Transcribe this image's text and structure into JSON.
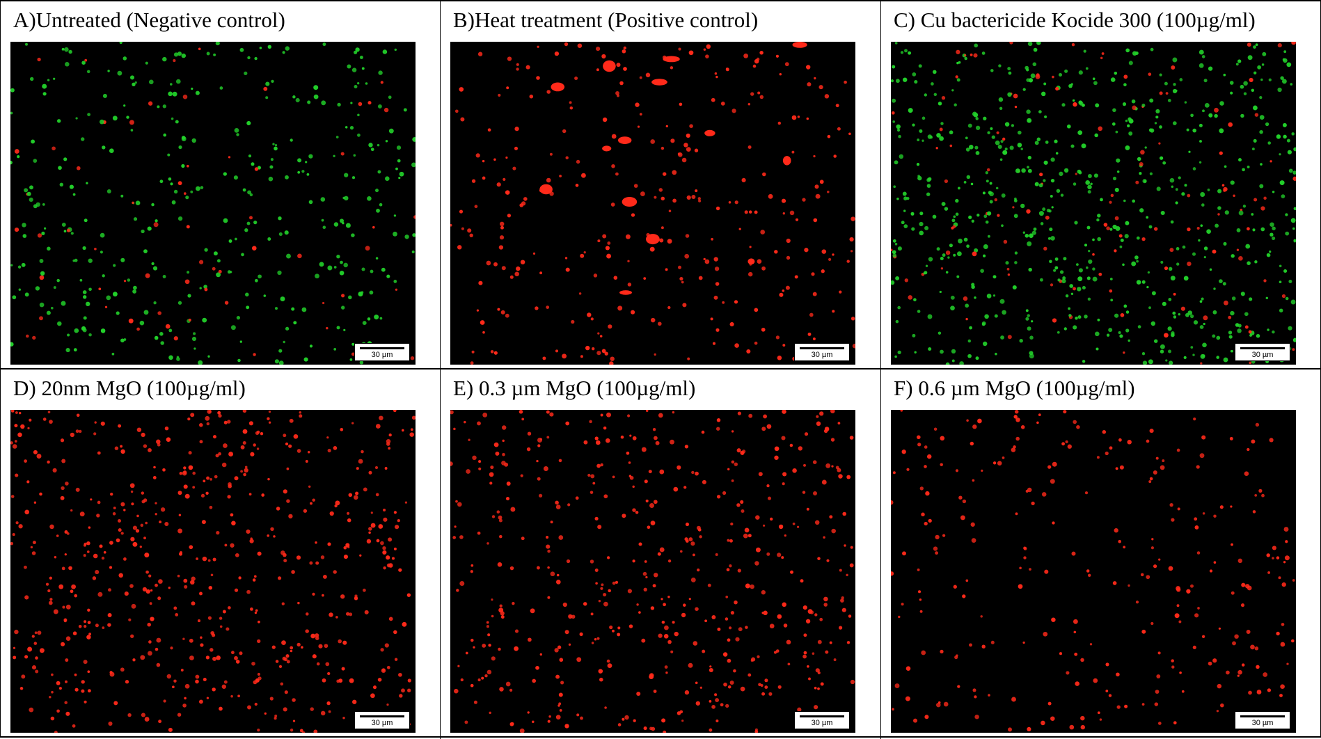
{
  "panels": [
    {
      "caption": "A)Untreated (Negative control)",
      "scale_label": "30 µm",
      "stain": {
        "live_fraction": 0.85,
        "cell_count": 420,
        "clumps": 0
      }
    },
    {
      "caption": "B)Heat treatment (Positive control)",
      "scale_label": "30 µm",
      "stain": {
        "live_fraction": 0.0,
        "cell_count": 300,
        "clumps": 14
      }
    },
    {
      "caption": "C) Cu bactericide Kocide 300 (100µg/ml)",
      "scale_label": "30 µm",
      "stain": {
        "live_fraction": 0.82,
        "cell_count": 760,
        "clumps": 0
      }
    },
    {
      "caption": "D) 20nm MgO (100µg/ml)",
      "scale_label": "30 µm",
      "stain": {
        "live_fraction": 0.0,
        "cell_count": 560,
        "clumps": 0
      }
    },
    {
      "caption": "E) 0.3 µm MgO (100µg/ml)",
      "scale_label": "30 µm",
      "stain": {
        "live_fraction": 0.0,
        "cell_count": 470,
        "clumps": 0
      }
    },
    {
      "caption": "F) 0.6 µm MgO (100µg/ml)",
      "scale_label": "30 µm",
      "stain": {
        "live_fraction": 0.0,
        "cell_count": 260,
        "clumps": 0
      }
    }
  ],
  "colors": {
    "live": "#22d02a",
    "dead": "#ff2a1a",
    "background": "#000000"
  }
}
